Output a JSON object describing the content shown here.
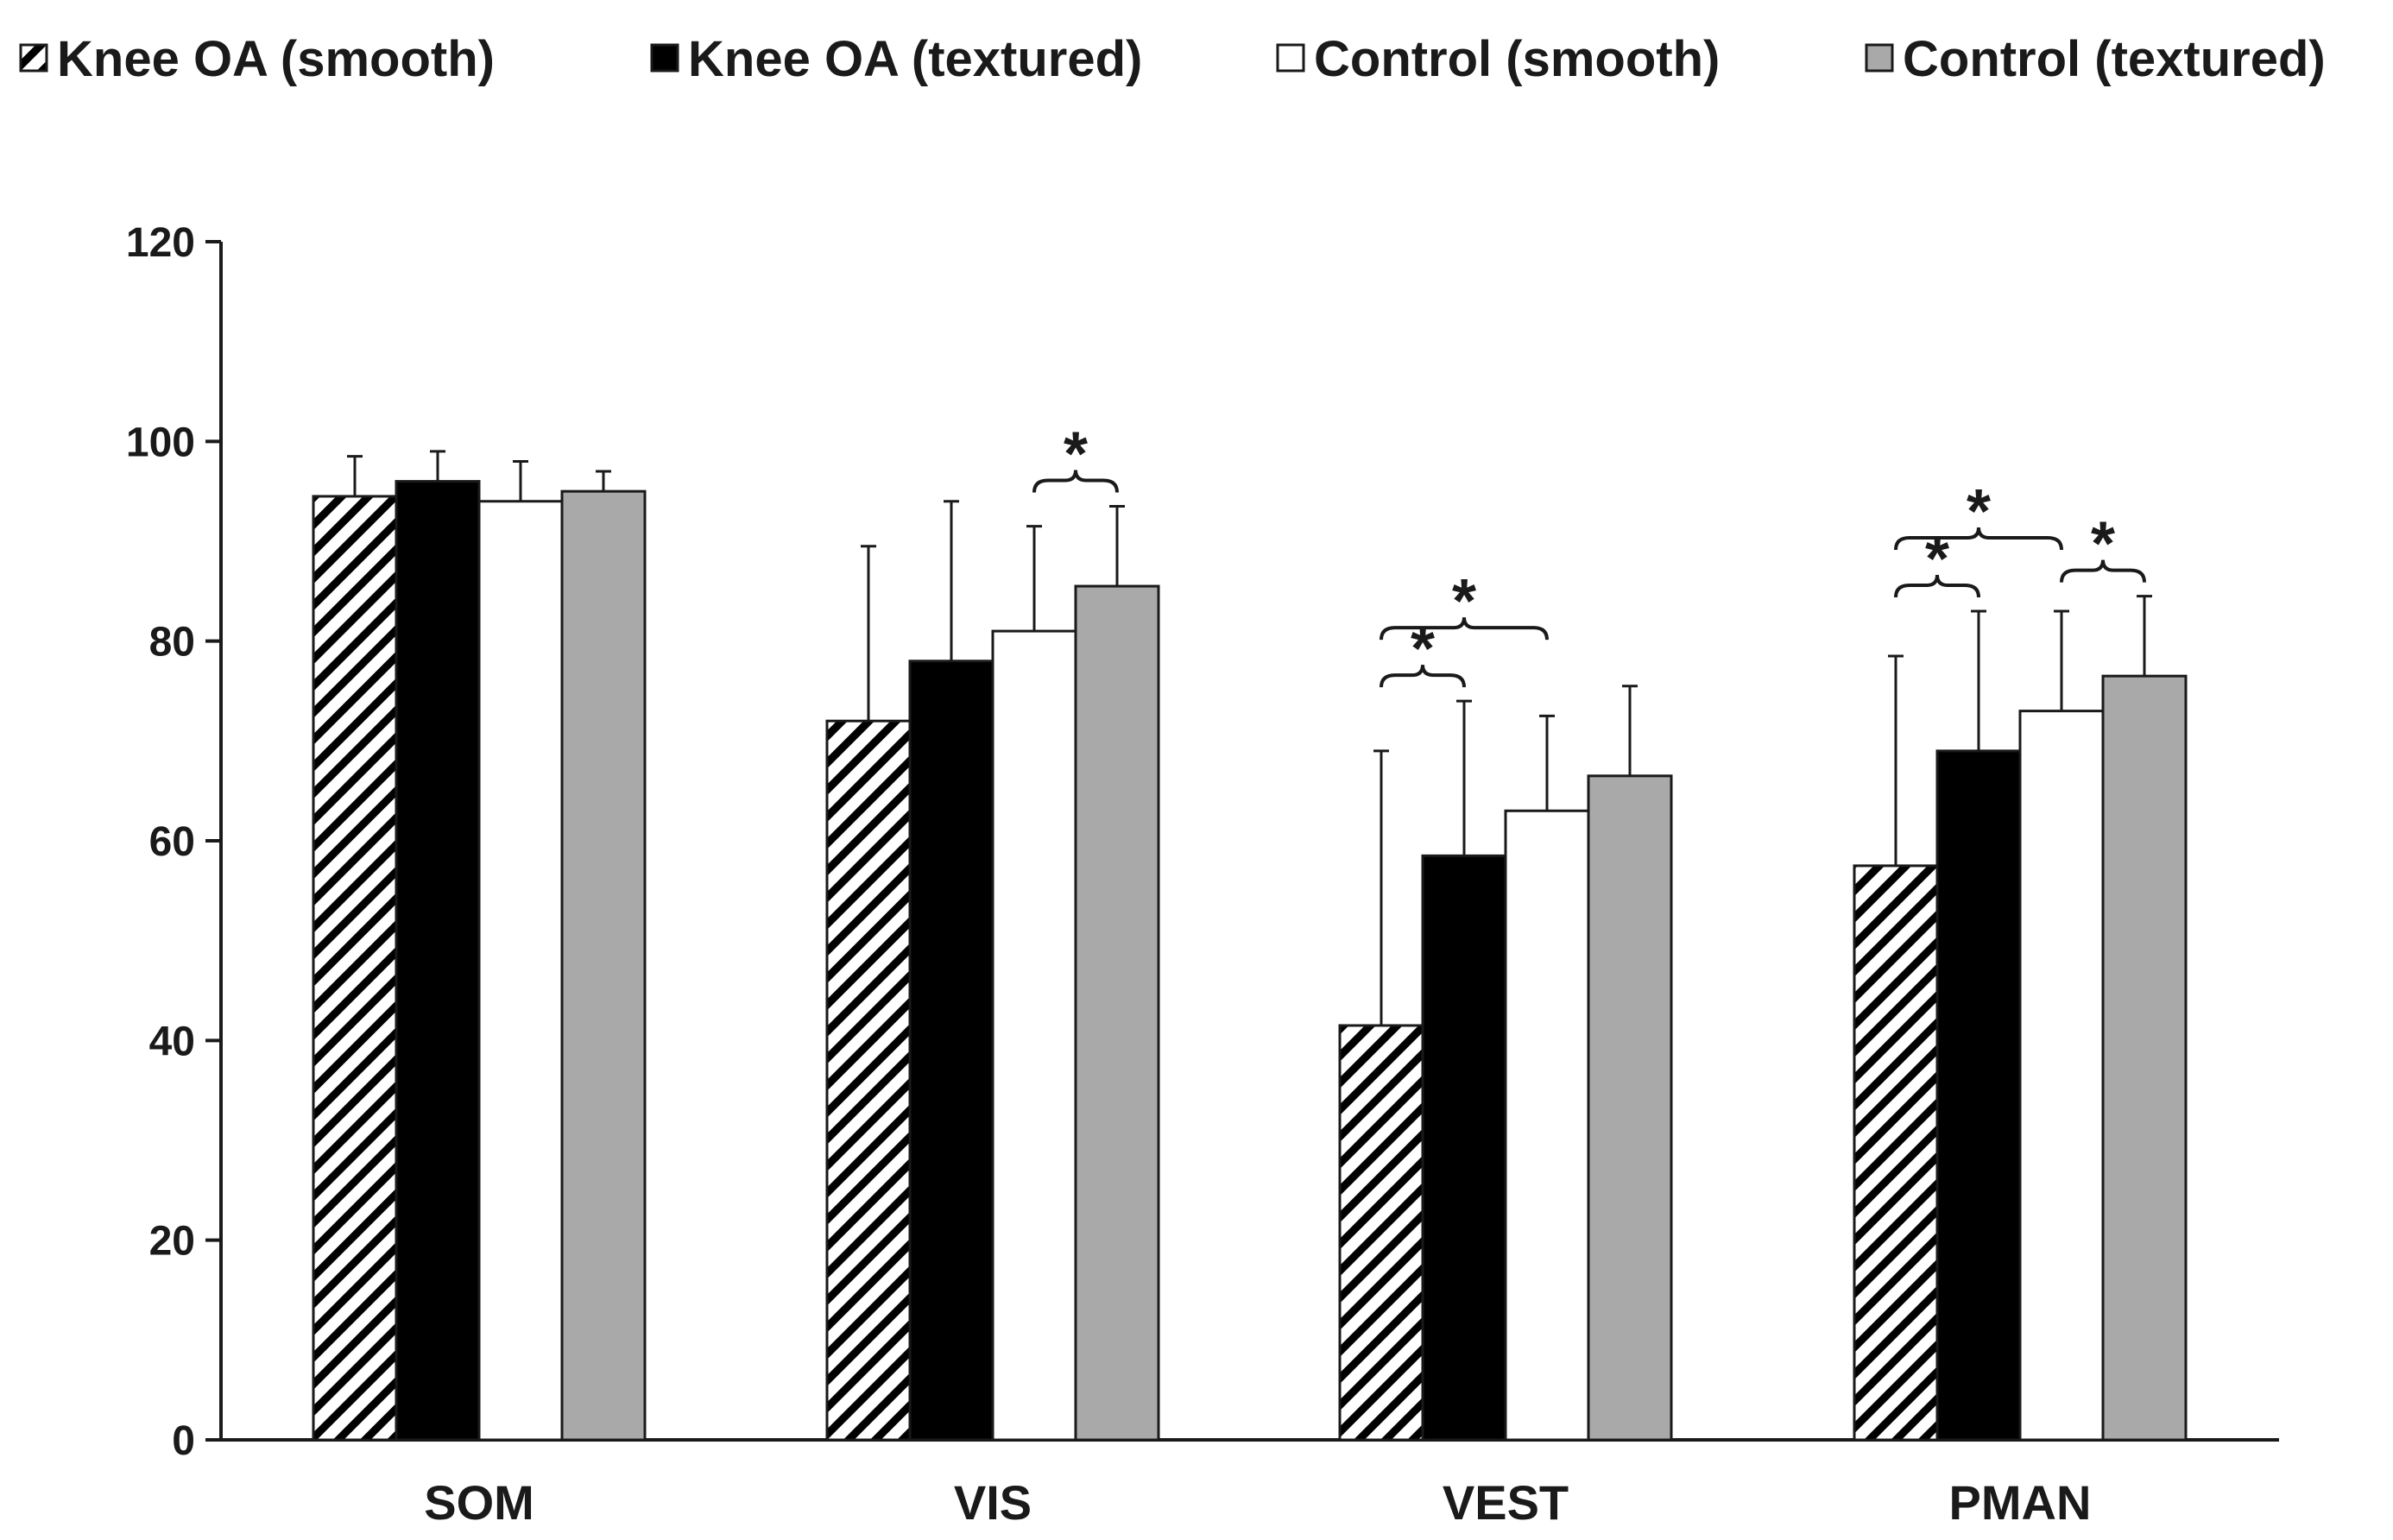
{
  "chart_data": {
    "type": "bar",
    "categories": [
      "SOM",
      "VIS",
      "VEST",
      "PMAN"
    ],
    "series": [
      {
        "name": "Knee OA (smooth)",
        "values": [
          94.5,
          72,
          41.5,
          57.5
        ],
        "errors": [
          4,
          17.5,
          27.5,
          21
        ],
        "style": "hatched"
      },
      {
        "name": "Knee OA (textured)",
        "values": [
          96,
          78,
          58.5,
          69
        ],
        "errors": [
          3,
          16,
          15.5,
          14
        ],
        "style": "black"
      },
      {
        "name": "Control (smooth)",
        "values": [
          94,
          81,
          63,
          73
        ],
        "errors": [
          4,
          10.5,
          9.5,
          10
        ],
        "style": "white"
      },
      {
        "name": "Control (textured)",
        "values": [
          95,
          85.5,
          66.5,
          76.5
        ],
        "errors": [
          2,
          8,
          9,
          8
        ],
        "style": "gray"
      }
    ],
    "ylim": [
      0,
      120
    ],
    "yticks": [
      0,
      20,
      40,
      60,
      80,
      100,
      120
    ],
    "title": "",
    "xlabel": "",
    "ylabel": "",
    "legend_position": "top",
    "significance": [
      {
        "category": 1,
        "from": 2,
        "to": 3,
        "level": 0,
        "label": "*"
      },
      {
        "category": 2,
        "from": 0,
        "to": 1,
        "level": 0,
        "label": "*"
      },
      {
        "category": 2,
        "from": 0,
        "to": 2,
        "level": 1,
        "label": "*"
      },
      {
        "category": 3,
        "from": 0,
        "to": 1,
        "level": 0,
        "label": "*"
      },
      {
        "category": 3,
        "from": 2,
        "to": 3,
        "level": 0,
        "label": "*"
      },
      {
        "category": 3,
        "from": 0,
        "to": 2,
        "level": 1,
        "label": "*"
      }
    ],
    "colors": {
      "black": "#000000",
      "white": "#ffffff",
      "gray": "#a9a9a9",
      "hatch": "#000000",
      "axis": "#1a1a1a"
    }
  }
}
